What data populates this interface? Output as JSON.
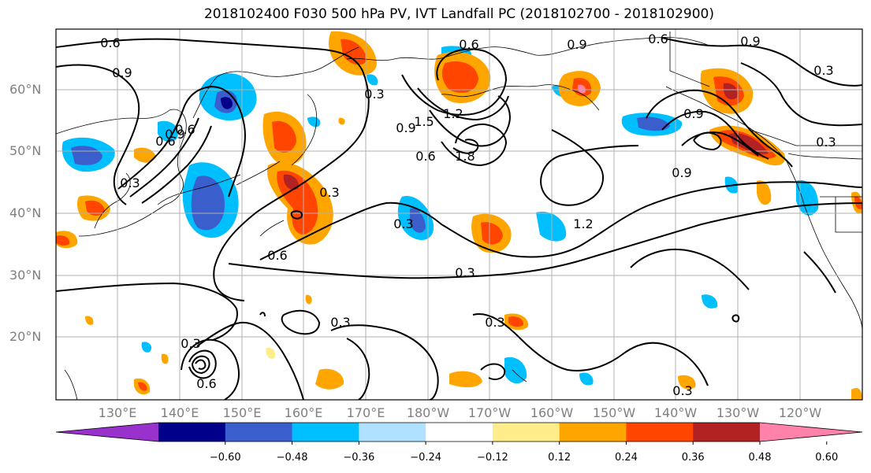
{
  "title": "2018102400 F030 500 hPa PV, IVT Landfall PC (2018102700 - 2018102900)",
  "lat_labels": [
    "60°N",
    "50°N",
    "40°N",
    "30°N",
    "20°N"
  ],
  "lon_labels": [
    "130°E",
    "140°E",
    "150°E",
    "160°E",
    "170°E",
    "180°W",
    "170°W",
    "160°W",
    "150°W",
    "140°W",
    "130°W",
    "120°W"
  ],
  "contour_labels": [
    "0.6",
    "0.9",
    "0.3",
    "0.6",
    "0.6",
    "0.9",
    "0.6",
    "0.9",
    "0.3",
    "1.2",
    "1.5",
    "0.9",
    "0.6",
    "1.8",
    "0.3",
    "0.9",
    "0.6",
    "0.9",
    "0.3",
    "0.3",
    "0.9",
    "0.3",
    "1.2",
    "0.6",
    "0.3",
    "0.3",
    "0.3",
    "0.3",
    "0.6",
    "0.3"
  ],
  "colorbar": {
    "ticks": [
      "−0.60",
      "−0.48",
      "−0.36",
      "−0.24",
      "−0.12",
      "0.12",
      "0.24",
      "0.36",
      "0.48",
      "0.60"
    ],
    "colors": [
      "#9932cc",
      "#00008b",
      "#3a5fcd",
      "#00bfff",
      "#b0e2ff",
      "#ffffff",
      "#ffec8b",
      "#ffa500",
      "#ff4500",
      "#b22222",
      "#ff82ab"
    ]
  }
}
